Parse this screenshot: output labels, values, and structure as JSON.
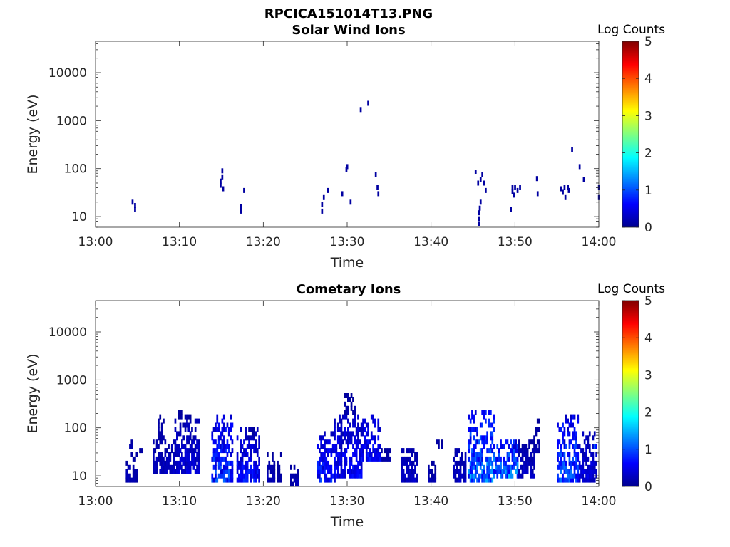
{
  "figure": {
    "filename_title": "RPCICA151014T13.PNG",
    "colors": {
      "axis": "#262626",
      "background": "#ffffff"
    },
    "colormap": [
      "#00008f",
      "#0000ff",
      "#0080ff",
      "#00ffff",
      "#80ff80",
      "#ffff00",
      "#ff8000",
      "#ff0000",
      "#800000"
    ]
  },
  "chart_data": [
    {
      "type": "heatmap",
      "title": "Solar Wind Ions",
      "xlabel": "Time",
      "ylabel": "Energy (eV)",
      "x_ticks": [
        "13:00",
        "13:10",
        "13:20",
        "13:30",
        "13:40",
        "13:50",
        "14:00"
      ],
      "xlim_minutes": [
        0,
        60
      ],
      "y_scale": "log",
      "y_ticks": [
        "10",
        "100",
        "1000",
        "10000"
      ],
      "ylim": [
        6,
        45000
      ],
      "colorbar": {
        "label": "Log Counts",
        "ticks": [
          "0",
          "1",
          "2",
          "3",
          "4",
          "5"
        ],
        "range": [
          0,
          5
        ]
      },
      "cells": [
        [
          4.3,
          20,
          0.1
        ],
        [
          4.6,
          14,
          0.1
        ],
        [
          4.6,
          17,
          0.1
        ],
        [
          14.8,
          55,
          0.1
        ],
        [
          14.8,
          45,
          0.1
        ],
        [
          15.0,
          65,
          0.1
        ],
        [
          15.0,
          90,
          0.1
        ],
        [
          15.1,
          38,
          0.1
        ],
        [
          17.2,
          13,
          0.1
        ],
        [
          17.2,
          16,
          0.1
        ],
        [
          17.6,
          35,
          0.1
        ],
        [
          26.9,
          13,
          0.1
        ],
        [
          26.9,
          18,
          0.1
        ],
        [
          27.1,
          25,
          0.1
        ],
        [
          27.6,
          35,
          0.1
        ],
        [
          29.3,
          30,
          0.1
        ],
        [
          29.8,
          95,
          0.1
        ],
        [
          29.9,
          110,
          0.1
        ],
        [
          30.3,
          20,
          0.1
        ],
        [
          31.5,
          1700,
          0.1
        ],
        [
          32.4,
          2300,
          0.1
        ],
        [
          33.3,
          75,
          0.1
        ],
        [
          33.5,
          40,
          0.1
        ],
        [
          33.6,
          30,
          0.1
        ],
        [
          45.2,
          85,
          0.1
        ],
        [
          45.5,
          50,
          0.1
        ],
        [
          45.6,
          7,
          0.1
        ],
        [
          45.6,
          9,
          0.1
        ],
        [
          45.6,
          12,
          0.1
        ],
        [
          45.7,
          15,
          0.1
        ],
        [
          45.8,
          60,
          0.1
        ],
        [
          45.8,
          20,
          0.1
        ],
        [
          46.0,
          75,
          0.1
        ],
        [
          46.2,
          50,
          0.1
        ],
        [
          46.4,
          35,
          0.1
        ],
        [
          49.4,
          14,
          0.1
        ],
        [
          49.6,
          40,
          0.1
        ],
        [
          49.6,
          33,
          0.1
        ],
        [
          49.8,
          28,
          0.1
        ],
        [
          49.9,
          40,
          0.1
        ],
        [
          50.2,
          35,
          0.1
        ],
        [
          50.5,
          40,
          0.1
        ],
        [
          52.5,
          62,
          0.1
        ],
        [
          52.6,
          30,
          0.1
        ],
        [
          55.4,
          38,
          0.1
        ],
        [
          55.6,
          32,
          0.1
        ],
        [
          55.8,
          40,
          0.1
        ],
        [
          55.9,
          25,
          0.1
        ],
        [
          56.2,
          40,
          0.1
        ],
        [
          56.3,
          35,
          0.1
        ],
        [
          56.7,
          250,
          0.1
        ],
        [
          57.6,
          110,
          0.1
        ],
        [
          58.1,
          60,
          0.1
        ],
        [
          59.9,
          40,
          0.1
        ],
        [
          59.9,
          25,
          0.1
        ]
      ]
    },
    {
      "type": "heatmap",
      "title": "Cometary Ions",
      "xlabel": "Time",
      "ylabel": "Energy (eV)",
      "x_ticks": [
        "13:00",
        "13:10",
        "13:20",
        "13:30",
        "13:40",
        "13:50",
        "14:00"
      ],
      "xlim_minutes": [
        0,
        60
      ],
      "y_scale": "log",
      "y_ticks": [
        "10",
        "100",
        "1000",
        "10000"
      ],
      "ylim": [
        6,
        45000
      ],
      "colorbar": {
        "label": "Log Counts",
        "ticks": [
          "0",
          "1",
          "2",
          "3",
          "4",
          "5"
        ],
        "range": [
          0,
          5
        ]
      },
      "bursts": [
        {
          "t": [
            3.6,
            5.0
          ],
          "emin": 7,
          "emax": 30,
          "peak": 0.3
        },
        {
          "t": [
            4.0,
            4.4
          ],
          "emin": 40,
          "emax": 60,
          "peak": 0.2
        },
        {
          "t": [
            5.0,
            5.6
          ],
          "emin": 30,
          "emax": 45,
          "peak": 0.2
        },
        {
          "t": [
            6.8,
            9.2
          ],
          "emin": 12,
          "emax": 60,
          "peak": 0.4
        },
        {
          "t": [
            7.4,
            8.2
          ],
          "emin": 60,
          "emax": 200,
          "peak": 0.2
        },
        {
          "t": [
            9.4,
            12.2
          ],
          "emin": 12,
          "emax": 140,
          "peak": 0.5
        },
        {
          "t": [
            9.8,
            11.4
          ],
          "emin": 140,
          "emax": 220,
          "peak": 0.2
        },
        {
          "t": [
            13.8,
            16.2
          ],
          "emin": 7,
          "emax": 180,
          "peak": 1.2
        },
        {
          "t": [
            16.8,
            19.4
          ],
          "emin": 8,
          "emax": 110,
          "peak": 0.9
        },
        {
          "t": [
            17.8,
            18.8
          ],
          "emin": 60,
          "emax": 110,
          "peak": 0.3
        },
        {
          "t": [
            20.4,
            21.2
          ],
          "emin": 7,
          "emax": 30,
          "peak": 0.3
        },
        {
          "t": [
            21.6,
            22.2
          ],
          "emin": 7,
          "emax": 30,
          "peak": 0.2
        },
        {
          "t": [
            23.2,
            24.0
          ],
          "emin": 6,
          "emax": 17,
          "peak": 0.3
        },
        {
          "t": [
            26.4,
            28.4
          ],
          "emin": 8,
          "emax": 90,
          "peak": 1.0
        },
        {
          "t": [
            28.4,
            31.6
          ],
          "emin": 9,
          "emax": 180,
          "peak": 0.8
        },
        {
          "t": [
            29.6,
            30.8
          ],
          "emin": 180,
          "emax": 550,
          "peak": 0.2
        },
        {
          "t": [
            31.6,
            34.0
          ],
          "emin": 20,
          "emax": 180,
          "peak": 0.9
        },
        {
          "t": [
            34.0,
            35.2
          ],
          "emin": 20,
          "emax": 40,
          "peak": 0.2
        },
        {
          "t": [
            36.4,
            38.4
          ],
          "emin": 8,
          "emax": 40,
          "peak": 0.4
        },
        {
          "t": [
            39.6,
            40.6
          ],
          "emin": 7,
          "emax": 20,
          "peak": 0.3
        },
        {
          "t": [
            40.4,
            41.4
          ],
          "emin": 35,
          "emax": 55,
          "peak": 0.2
        },
        {
          "t": [
            42.6,
            44.2
          ],
          "emin": 8,
          "emax": 40,
          "peak": 0.4
        },
        {
          "t": [
            44.4,
            47.6
          ],
          "emin": 7,
          "emax": 230,
          "peak": 1.6
        },
        {
          "t": [
            47.6,
            50.4
          ],
          "emin": 9,
          "emax": 60,
          "peak": 1.7
        },
        {
          "t": [
            50.4,
            52.4
          ],
          "emin": 9,
          "emax": 60,
          "peak": 0.4
        },
        {
          "t": [
            52.2,
            53.0
          ],
          "emin": 30,
          "emax": 150,
          "peak": 0.2
        },
        {
          "t": [
            55.0,
            57.6
          ],
          "emin": 7,
          "emax": 180,
          "peak": 1.4
        },
        {
          "t": [
            57.6,
            59.8
          ],
          "emin": 8,
          "emax": 80,
          "peak": 0.6
        },
        {
          "t": [
            59.4,
            60.0
          ],
          "emin": 35,
          "emax": 45,
          "peak": 1.8
        }
      ]
    }
  ]
}
